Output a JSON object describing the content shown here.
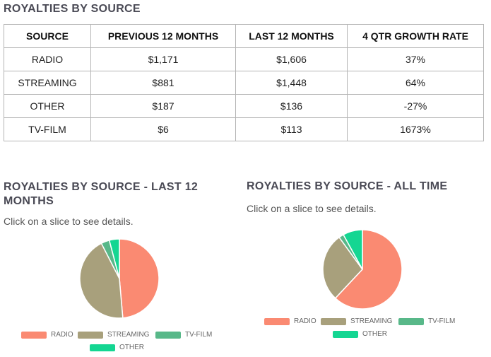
{
  "table": {
    "title": "ROYALTIES BY SOURCE",
    "headers": [
      "SOURCE",
      "PREVIOUS 12 MONTHS",
      "LAST 12 MONTHS",
      "4 QTR GROWTH RATE"
    ],
    "rows": [
      [
        "RADIO",
        "$1,171",
        "$1,606",
        "37%"
      ],
      [
        "STREAMING",
        "$881",
        "$1,448",
        "64%"
      ],
      [
        "OTHER",
        "$187",
        "$136",
        "-27%"
      ],
      [
        "TV-FILM",
        "$6",
        "$113",
        "1673%"
      ]
    ]
  },
  "hint_text": "Click on a slice to see details.",
  "chart_data": [
    {
      "type": "pie",
      "title": "ROYALTIES BY SOURCE - LAST 12 MONTHS",
      "categories": [
        "RADIO",
        "STREAMING",
        "TV-FILM",
        "OTHER"
      ],
      "values": [
        1606,
        1448,
        113,
        136
      ],
      "colors": [
        "#fa8a72",
        "#a8a07c",
        "#58b889",
        "#14d692"
      ],
      "legend_position": "bottom"
    },
    {
      "type": "pie",
      "title": "ROYALTIES BY SOURCE - ALL TIME",
      "categories": [
        "RADIO",
        "STREAMING",
        "TV-FILM",
        "OTHER"
      ],
      "values": [
        62,
        28,
        2,
        8
      ],
      "colors": [
        "#fa8a72",
        "#a8a07c",
        "#58b889",
        "#14d692"
      ],
      "legend_position": "bottom"
    }
  ]
}
